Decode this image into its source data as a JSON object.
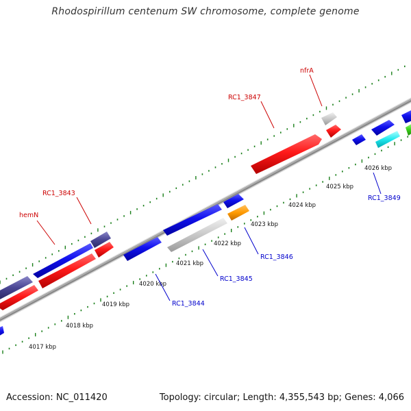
{
  "title": "Rhodospirillum centenum SW chromosome, complete genome",
  "footer": {
    "accession": "Accession: NC_011420",
    "topology": "Topology: circular; Length: 4,355,543 bp; Genes: 4,066"
  },
  "ruler_labels": [
    "4017 kbp",
    "4018 kbp",
    "4019 kbp",
    "4020 kbp",
    "4021 kbp",
    "4022 kbp",
    "4023 kbp",
    "4024 kbp",
    "4025 kbp",
    "4026 kbp"
  ],
  "colors": {
    "backbone": "#7f7f7f",
    "tick": "#1a7f1a",
    "forward_label": "#cc0000",
    "reverse_label": "#0000cc"
  },
  "gene_labels": {
    "hemN": "hemN",
    "rc1_3843": "RC1_3843",
    "rc1_3847": "RC1_3847",
    "nfrA": "nfrA",
    "rc1_3844": "RC1_3844",
    "rc1_3845": "RC1_3845",
    "rc1_3846": "RC1_3846",
    "rc1_3849": "RC1_3849"
  },
  "gene_colors": [
    "blue",
    "red",
    "dark-slate-blue",
    "light-gray",
    "orange",
    "cyan",
    "green"
  ]
}
